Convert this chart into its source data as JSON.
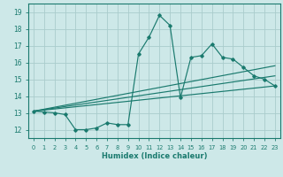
{
  "xlabel": "Humidex (Indice chaleur)",
  "ylabel": "",
  "xlim": [
    -0.5,
    23.5
  ],
  "ylim": [
    11.5,
    19.5
  ],
  "yticks": [
    12,
    13,
    14,
    15,
    16,
    17,
    18,
    19
  ],
  "xticks": [
    0,
    1,
    2,
    3,
    4,
    5,
    6,
    7,
    8,
    9,
    10,
    11,
    12,
    13,
    14,
    15,
    16,
    17,
    18,
    19,
    20,
    21,
    22,
    23
  ],
  "xtick_labels": [
    "0",
    "1",
    "2",
    "3",
    "4",
    "5",
    "6",
    "7",
    "8",
    "9",
    "10",
    "11",
    "12",
    "13",
    "14",
    "15",
    "16",
    "17",
    "18",
    "19",
    "20",
    "21",
    "22",
    "23"
  ],
  "bg_color": "#cde8e8",
  "grid_color": "#aacccc",
  "line_color": "#1a7a6e",
  "line1_x": [
    0,
    1,
    2,
    3,
    4,
    5,
    6,
    7,
    8,
    9,
    10,
    11,
    12,
    13,
    14,
    15,
    16,
    17,
    18,
    19,
    20,
    21,
    22,
    23
  ],
  "line1_y": [
    13.1,
    13.05,
    13.0,
    12.9,
    12.0,
    12.0,
    12.1,
    12.4,
    12.3,
    12.3,
    16.5,
    17.5,
    18.8,
    18.2,
    13.9,
    16.3,
    16.4,
    17.1,
    16.3,
    16.2,
    15.7,
    15.2,
    15.0,
    14.6
  ],
  "line2_x": [
    0,
    23
  ],
  "line2_y": [
    13.1,
    14.6
  ],
  "line3_x": [
    0,
    23
  ],
  "line3_y": [
    13.1,
    15.2
  ],
  "line4_x": [
    0,
    23
  ],
  "line4_y": [
    13.1,
    15.8
  ]
}
